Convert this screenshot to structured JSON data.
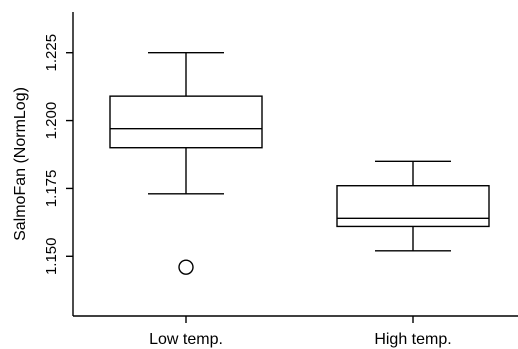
{
  "chart_data": {
    "type": "box",
    "title": "",
    "xlabel": "",
    "ylabel": "SalmoFan (NormLog)",
    "ylim": [
      1.128,
      1.24
    ],
    "yticks": [
      1.15,
      1.175,
      1.2,
      1.225
    ],
    "ytick_labels": [
      "1.150",
      "1.175",
      "1.200",
      "1.225"
    ],
    "grid": false,
    "legend": "none",
    "categories": [
      "Low temp.",
      "High temp."
    ],
    "boxes": [
      {
        "category": "Low temp.",
        "whisker_low": 1.173,
        "q1": 1.19,
        "median": 1.197,
        "q3": 1.209,
        "whisker_high": 1.225,
        "outliers": [
          1.146
        ]
      },
      {
        "category": "High temp.",
        "whisker_low": 1.152,
        "q1": 1.161,
        "median": 1.164,
        "q3": 1.176,
        "whisker_high": 1.185,
        "outliers": []
      }
    ],
    "colors": {
      "line": "#000000",
      "box_fill": "#ffffff",
      "background": "#ffffff"
    }
  }
}
